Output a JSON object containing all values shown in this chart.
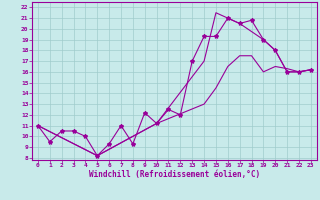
{
  "xlabel": "Windchill (Refroidissement éolien,°C)",
  "xlim": [
    -0.5,
    23.5
  ],
  "ylim": [
    7.8,
    22.5
  ],
  "yticks": [
    8,
    9,
    10,
    11,
    12,
    13,
    14,
    15,
    16,
    17,
    18,
    19,
    20,
    21,
    22
  ],
  "xticks": [
    0,
    1,
    2,
    3,
    4,
    5,
    6,
    7,
    8,
    9,
    10,
    11,
    12,
    13,
    14,
    15,
    16,
    17,
    18,
    19,
    20,
    21,
    22,
    23
  ],
  "line_color": "#990099",
  "bg_color": "#c8eaea",
  "grid_color": "#a0cccc",
  "line1_x": [
    0,
    1,
    2,
    3,
    4,
    5,
    6,
    7,
    8,
    9,
    10,
    11,
    12,
    13,
    14,
    15,
    16,
    17,
    18,
    19,
    20,
    21,
    22,
    23
  ],
  "line1_y": [
    11.0,
    9.5,
    10.5,
    10.5,
    10.0,
    8.2,
    9.3,
    11.0,
    9.3,
    12.2,
    11.2,
    12.5,
    12.0,
    17.0,
    19.3,
    19.3,
    21.0,
    20.5,
    20.8,
    19.0,
    18.0,
    16.0,
    16.0,
    16.2
  ],
  "line2_x": [
    0,
    5,
    10,
    14,
    15,
    16,
    17,
    19,
    20,
    21,
    22,
    23
  ],
  "line2_y": [
    11.0,
    8.2,
    11.2,
    17.0,
    21.5,
    21.0,
    20.5,
    19.0,
    18.0,
    16.0,
    16.0,
    16.2
  ],
  "line3_x": [
    0,
    5,
    10,
    14,
    15,
    16,
    17,
    18,
    19,
    20,
    21,
    22,
    23
  ],
  "line3_y": [
    11.0,
    8.2,
    11.2,
    13.0,
    14.5,
    16.5,
    17.5,
    17.5,
    16.0,
    16.5,
    16.3,
    16.0,
    16.2
  ]
}
